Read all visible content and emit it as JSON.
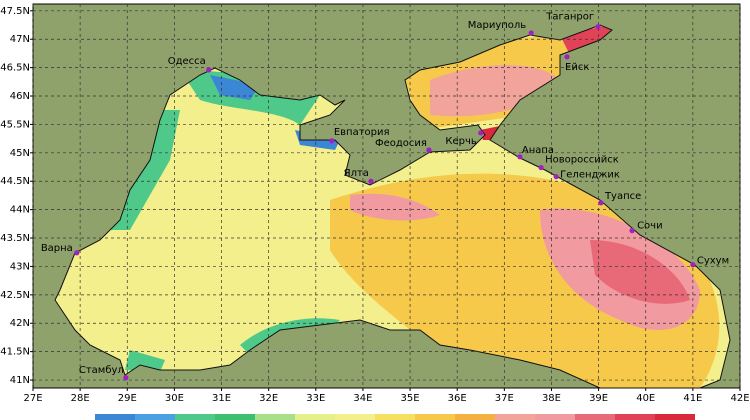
{
  "map": {
    "xlim": [
      27,
      42
    ],
    "ylim": [
      40.86,
      47.62
    ],
    "grid": true,
    "xticks": [
      {
        "value": 27,
        "label": "27E"
      },
      {
        "value": 28,
        "label": "28E"
      },
      {
        "value": 29,
        "label": "29E"
      },
      {
        "value": 30,
        "label": "30E"
      },
      {
        "value": 31,
        "label": "31E"
      },
      {
        "value": 32,
        "label": "32E"
      },
      {
        "value": 33,
        "label": "33E"
      },
      {
        "value": 34,
        "label": "34E"
      },
      {
        "value": 35,
        "label": "35E"
      },
      {
        "value": 36,
        "label": "36E"
      },
      {
        "value": 37,
        "label": "37E"
      },
      {
        "value": 38,
        "label": "38E"
      },
      {
        "value": 39,
        "label": "39E"
      },
      {
        "value": 40,
        "label": "40E"
      },
      {
        "value": 41,
        "label": "41E"
      },
      {
        "value": 42,
        "label": "42E"
      }
    ],
    "yticks": [
      {
        "value": 47.5,
        "label": "47.5N"
      },
      {
        "value": 47,
        "label": "47N"
      },
      {
        "value": 46.5,
        "label": "46.5N"
      },
      {
        "value": 46,
        "label": "46N"
      },
      {
        "value": 45.5,
        "label": "45.5N"
      },
      {
        "value": 45,
        "label": "45N"
      },
      {
        "value": 44.5,
        "label": "44.5N"
      },
      {
        "value": 44,
        "label": "44N"
      },
      {
        "value": 43.5,
        "label": "43.5N"
      },
      {
        "value": 43,
        "label": "43N"
      },
      {
        "value": 42.5,
        "label": "42.5N"
      },
      {
        "value": 42,
        "label": "42N"
      },
      {
        "value": 41.5,
        "label": "41.5N"
      },
      {
        "value": 41,
        "label": "41N"
      }
    ],
    "cities": [
      {
        "name": "Одесса",
        "lon": 30.73,
        "lat": 46.46
      },
      {
        "name": "Мариуполь",
        "lon": 37.57,
        "lat": 47.11
      },
      {
        "name": "Таганрог",
        "lon": 38.99,
        "lat": 47.22
      },
      {
        "name": "Ейск",
        "lon": 38.33,
        "lat": 46.69
      },
      {
        "name": "Евпатория",
        "lon": 33.34,
        "lat": 45.21
      },
      {
        "name": "Феодосия",
        "lon": 35.4,
        "lat": 45.05
      },
      {
        "name": "Керчь",
        "lon": 36.5,
        "lat": 45.35
      },
      {
        "name": "Ялта",
        "lon": 34.17,
        "lat": 44.5
      },
      {
        "name": "Анапа",
        "lon": 37.33,
        "lat": 44.93
      },
      {
        "name": "Новороссийск",
        "lon": 37.78,
        "lat": 44.74
      },
      {
        "name": "Геленджик",
        "lon": 38.1,
        "lat": 44.58
      },
      {
        "name": "Туапсе",
        "lon": 39.05,
        "lat": 44.12
      },
      {
        "name": "Сочи",
        "lon": 39.71,
        "lat": 43.63
      },
      {
        "name": "Сухум",
        "lon": 41.0,
        "lat": 43.03
      },
      {
        "name": "Варна",
        "lon": 27.93,
        "lat": 43.24
      },
      {
        "name": "Стамбул",
        "lon": 28.97,
        "lat": 41.04
      }
    ]
  }
}
